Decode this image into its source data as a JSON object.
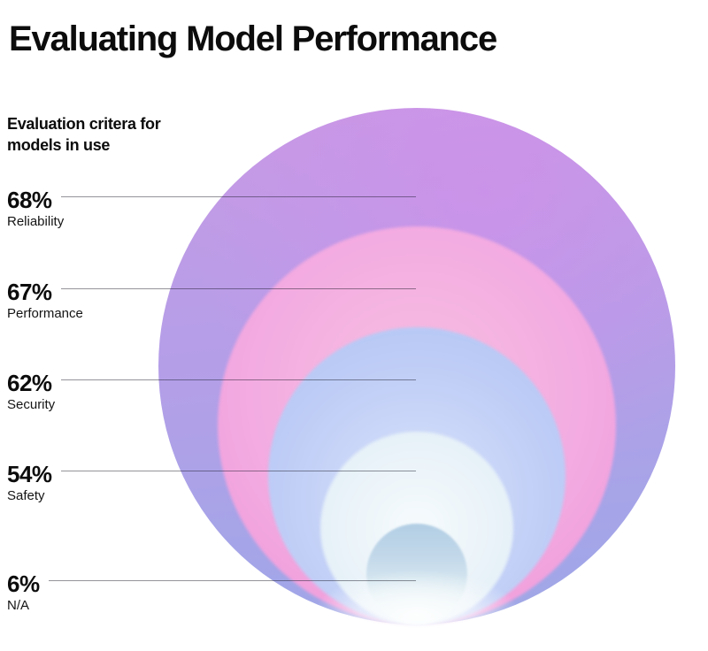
{
  "header": {
    "title": "Evaluating Model Performance"
  },
  "legend": {
    "heading_line1": "Evaluation critera for",
    "heading_line2": "models in use"
  },
  "rows": [
    {
      "percent": "68%",
      "label": "Reliability"
    },
    {
      "percent": "67%",
      "label": "Performance"
    },
    {
      "percent": "62%",
      "label": "Security"
    },
    {
      "percent": "54%",
      "label": "Safety"
    },
    {
      "percent": "6%",
      "label": "N/A"
    }
  ],
  "chart_data": {
    "type": "nested_circles",
    "title": "Evaluating Model Performance",
    "subtitle": "Evaluation critera for models in use",
    "categories": [
      "Reliability",
      "Performance",
      "Security",
      "Safety",
      "N/A"
    ],
    "values": [
      68,
      67,
      62,
      54,
      6
    ],
    "unit": "%",
    "layout": "bottom-tangent nested circles, labels with leader lines on left",
    "legend_position": "left",
    "colors": {
      "reliability_circle": "#b59ee8",
      "performance_circle": "#f3abe1",
      "security_circle": "#b7c9f5",
      "safety_circle": "#e8f2f9",
      "na_circle": "#bfd7ea",
      "text": "#0c0c0c",
      "leader_line": "rgba(18,18,30,0.45)",
      "background": "#ffffff"
    }
  }
}
